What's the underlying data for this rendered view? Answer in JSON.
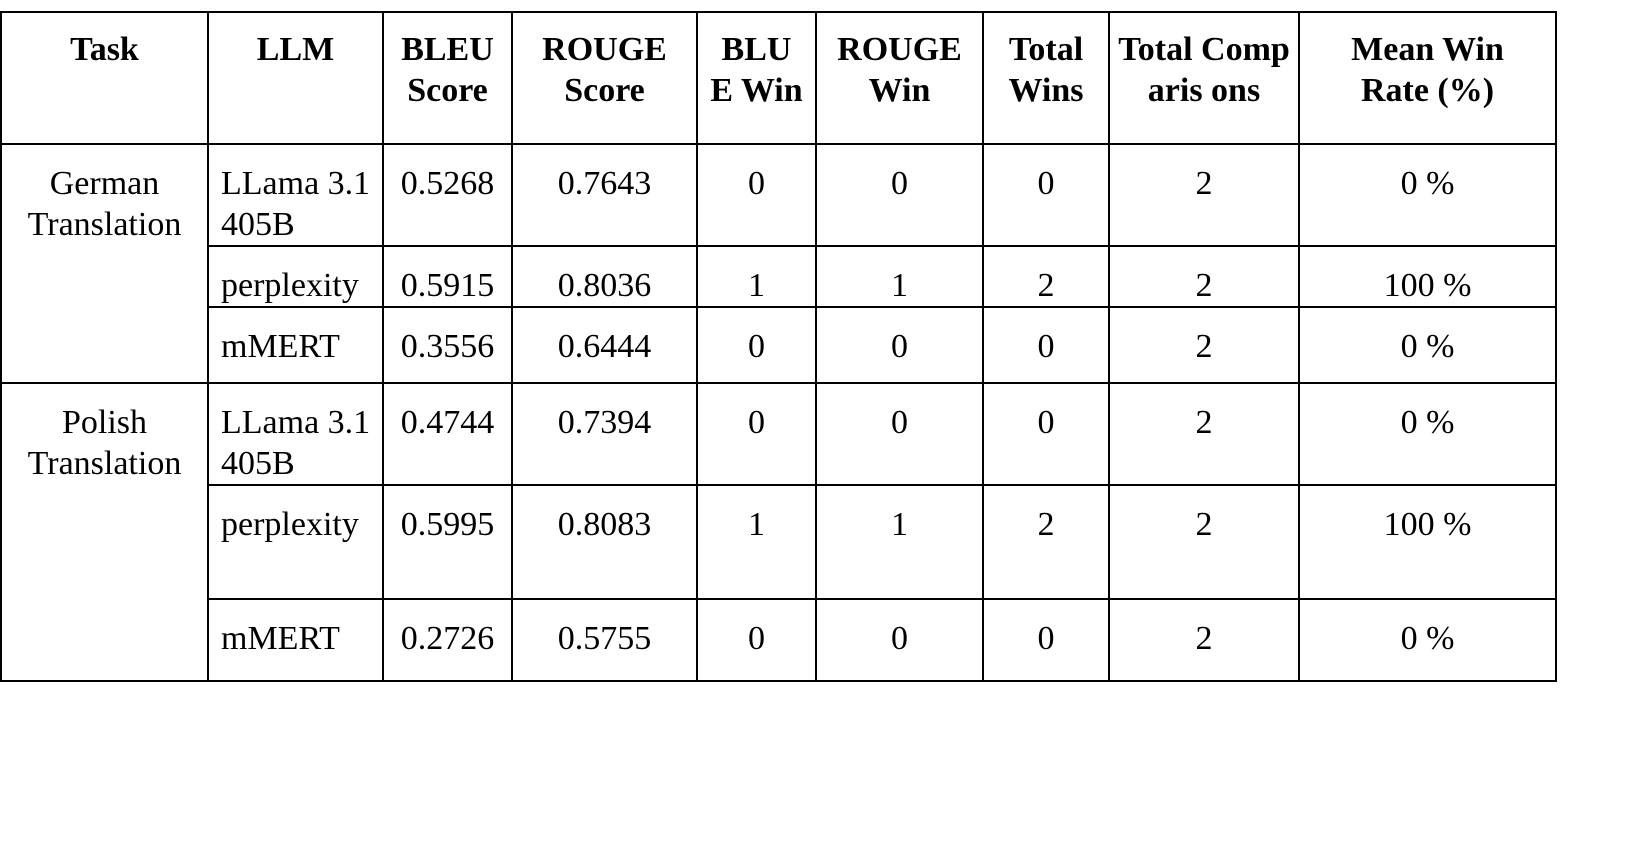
{
  "headers": {
    "task": "Task",
    "llm": "LLM",
    "bleu_score": "BLEU Score",
    "rouge_score": "ROUGE Score",
    "bleu_win": "BLU E Win",
    "rouge_win": "ROUGE Win",
    "total_wins": "Total Wins",
    "total_comparisons": "Total Comparis ons",
    "mean_win_rate": "Mean Win Rate (%)"
  },
  "groups": [
    {
      "task": "German Translation",
      "rows": [
        {
          "llm": "LLama 3.1 405B",
          "bleu": "0.5268",
          "rouge": "0.7643",
          "bleu_win": "0",
          "rouge_win": "0",
          "total_wins": "0",
          "total_comparisons": "2",
          "mean_win_rate": "0 %"
        },
        {
          "llm": "perplexity",
          "bleu": "0.5915",
          "rouge": "0.8036",
          "bleu_win": "1",
          "rouge_win": "1",
          "total_wins": "2",
          "total_comparisons": "2",
          "mean_win_rate": "100 %"
        },
        {
          "llm": "mMERT",
          "bleu": "0.3556",
          "rouge": "0.6444",
          "bleu_win": "0",
          "rouge_win": "0",
          "total_wins": "0",
          "total_comparisons": "2",
          "mean_win_rate": "0 %"
        }
      ]
    },
    {
      "task": "Polish Translation",
      "rows": [
        {
          "llm": "LLama 3.1 405B",
          "bleu": "0.4744",
          "rouge": "0.7394",
          "bleu_win": "0",
          "rouge_win": "0",
          "total_wins": "0",
          "total_comparisons": "2",
          "mean_win_rate": "0 %"
        },
        {
          "llm": "perplexity",
          "bleu": "0.5995",
          "rouge": "0.8083",
          "bleu_win": "1",
          "rouge_win": "1",
          "total_wins": "2",
          "total_comparisons": "2",
          "mean_win_rate": "100 %"
        },
        {
          "llm": "mMERT",
          "bleu": "0.2726",
          "rouge": "0.5755",
          "bleu_win": "0",
          "rouge_win": "0",
          "total_wins": "0",
          "total_comparisons": "2",
          "mean_win_rate": "0 %"
        }
      ]
    }
  ]
}
